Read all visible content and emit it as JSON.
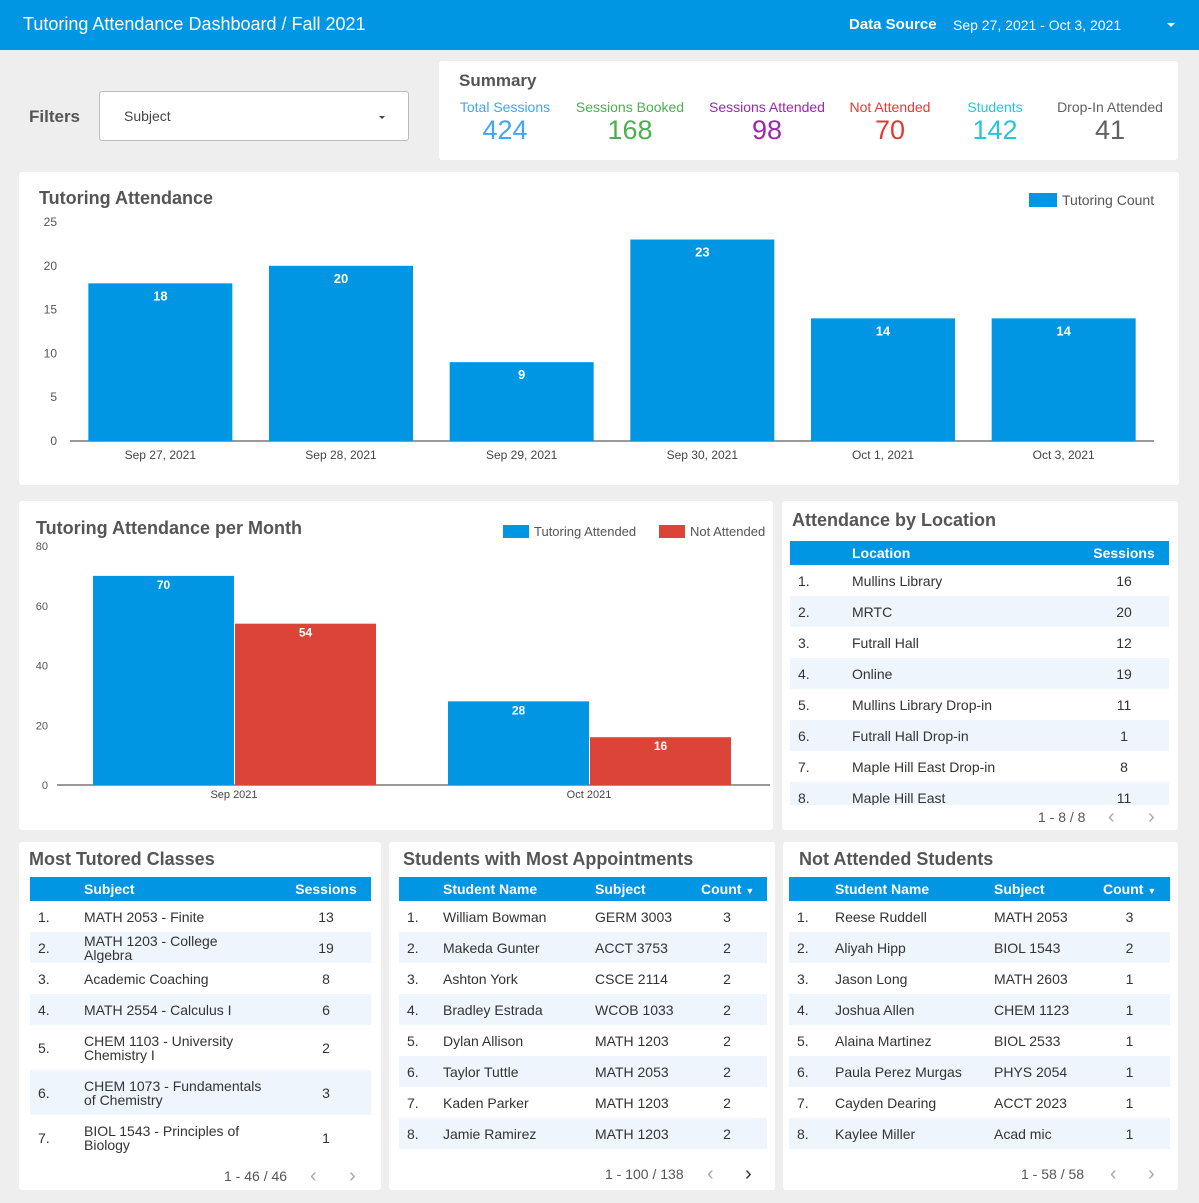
{
  "header": {
    "title": "Tutoring Attendance Dashboard / Fall 2021",
    "data_source_label": "Data Source",
    "date_range": "Sep 27, 2021 - Oct 3, 2021"
  },
  "filters": {
    "label": "Filters",
    "subject_placeholder": "Subject"
  },
  "summary": {
    "title": "Summary",
    "kpis": [
      {
        "label": "Total Sessions",
        "value": "424",
        "color": "#42a5f5"
      },
      {
        "label": "Sessions Booked",
        "value": "168",
        "color": "#4caf50"
      },
      {
        "label": "Sessions Attended",
        "value": "98",
        "color": "#9c27b0"
      },
      {
        "label": "Not Attended",
        "value": "70",
        "color": "#e53935"
      },
      {
        "label": "Students",
        "value": "142",
        "color": "#26c6da"
      },
      {
        "label": "Drop-In Attended",
        "value": "41",
        "color": "#616161"
      }
    ]
  },
  "chart_data": [
    {
      "type": "bar",
      "title": "Tutoring Attendance",
      "categories": [
        "Sep 27, 2021",
        "Sep 28, 2021",
        "Sep 29, 2021",
        "Sep 30, 2021",
        "Oct 1, 2021",
        "Oct 3, 2021"
      ],
      "series": [
        {
          "name": "Tutoring Count",
          "values": [
            18,
            20,
            9,
            23,
            14,
            14
          ],
          "color": "#0096e4"
        }
      ],
      "yticks": [
        0,
        5,
        10,
        15,
        20,
        25
      ],
      "ylim": [
        0,
        25
      ],
      "legend": "top-right"
    },
    {
      "type": "bar",
      "title": "Tutoring Attendance per Month",
      "categories": [
        "Sep 2021",
        "Oct 2021"
      ],
      "series": [
        {
          "name": "Tutoring Attended",
          "values": [
            70,
            28
          ],
          "color": "#0096e4"
        },
        {
          "name": "Not Attended",
          "values": [
            54,
            16
          ],
          "color": "#db4437"
        }
      ],
      "yticks": [
        0,
        20,
        40,
        60,
        80
      ],
      "ylim": [
        0,
        80
      ],
      "legend": "top-right"
    }
  ],
  "location": {
    "title": "Attendance by Location",
    "col_location": "Location",
    "col_sessions": "Sessions",
    "rows": [
      {
        "n": "1.",
        "name": "Mullins Library",
        "sessions": "16"
      },
      {
        "n": "2.",
        "name": "MRTC",
        "sessions": "20"
      },
      {
        "n": "3.",
        "name": "Futrall Hall",
        "sessions": "12"
      },
      {
        "n": "4.",
        "name": "Online",
        "sessions": "19"
      },
      {
        "n": "5.",
        "name": "Mullins Library Drop-in",
        "sessions": "11"
      },
      {
        "n": "6.",
        "name": "Futrall Hall Drop-in",
        "sessions": "1"
      },
      {
        "n": "7.",
        "name": "Maple Hill East Drop-in",
        "sessions": "8"
      },
      {
        "n": "8.",
        "name": "Maple Hill East",
        "sessions": "11"
      }
    ],
    "pager": "1 - 8 / 8"
  },
  "classes": {
    "title": "Most Tutored Classes",
    "col_subject": "Subject",
    "col_sessions": "Sessions",
    "rows": [
      {
        "n": "1.",
        "subject": "MATH 2053 - Finite",
        "sessions": "13"
      },
      {
        "n": "2.",
        "subject": "MATH 1203 - College Algebra",
        "sessions": "19"
      },
      {
        "n": "3.",
        "subject": "Academic Coaching",
        "sessions": "8"
      },
      {
        "n": "4.",
        "subject": "MATH 2554 - Calculus I",
        "sessions": "6"
      },
      {
        "n": "5.",
        "subject": "CHEM 1103 - University Chemistry I",
        "sessions": "2"
      },
      {
        "n": "6.",
        "subject": "CHEM 1073 - Fundamentals of Chemistry",
        "sessions": "3"
      },
      {
        "n": "7.",
        "subject": "BIOL 1543 - Principles of Biology",
        "sessions": "1"
      }
    ],
    "pager": "1 - 46 / 46"
  },
  "appointments": {
    "title": "Students with Most Appointments",
    "col_name": "Student Name",
    "col_subject": "Subject",
    "col_count": "Count",
    "rows": [
      {
        "n": "1.",
        "name": "William Bowman",
        "subject": "GERM 3003",
        "count": "3"
      },
      {
        "n": "2.",
        "name": "Makeda Gunter",
        "subject": "ACCT 3753",
        "count": "2"
      },
      {
        "n": "3.",
        "name": "Ashton York",
        "subject": "CSCE 2114",
        "count": "2"
      },
      {
        "n": "4.",
        "name": "Bradley Estrada",
        "subject": "WCOB 1033",
        "count": "2"
      },
      {
        "n": "5.",
        "name": "Dylan Allison",
        "subject": "MATH 1203",
        "count": "2"
      },
      {
        "n": "6.",
        "name": "Taylor Tuttle",
        "subject": "MATH 2053",
        "count": "2"
      },
      {
        "n": "7.",
        "name": "Kaden Parker",
        "subject": "MATH 1203",
        "count": "2"
      },
      {
        "n": "8.",
        "name": "Jamie Ramirez",
        "subject": "MATH 1203",
        "count": "2"
      }
    ],
    "pager": "1 - 100 / 138"
  },
  "not_attended": {
    "title": "Not Attended Students",
    "col_name": "Student Name",
    "col_subject": "Subject",
    "col_count": "Count",
    "rows": [
      {
        "n": "1.",
        "name": "Reese Ruddell",
        "subject": "MATH 2053",
        "count": "3"
      },
      {
        "n": "2.",
        "name": "Aliyah Hipp",
        "subject": "BIOL 1543",
        "count": "2"
      },
      {
        "n": "3.",
        "name": "Jason Long",
        "subject": "MATH 2603",
        "count": "1"
      },
      {
        "n": "4.",
        "name": "Joshua Allen",
        "subject": "CHEM 1123",
        "count": "1"
      },
      {
        "n": "5.",
        "name": "Alaina Martinez",
        "subject": "BIOL 2533",
        "count": "1"
      },
      {
        "n": "6.",
        "name": "Paula Perez Murgas",
        "subject": "PHYS 2054",
        "count": "1"
      },
      {
        "n": "7.",
        "name": "Cayden Dearing",
        "subject": "ACCT 2023",
        "count": "1"
      },
      {
        "n": "8.",
        "name": "Kaylee Miller",
        "subject": "Acad mic",
        "count": "1"
      }
    ],
    "pager": "1 - 58 / 58"
  }
}
